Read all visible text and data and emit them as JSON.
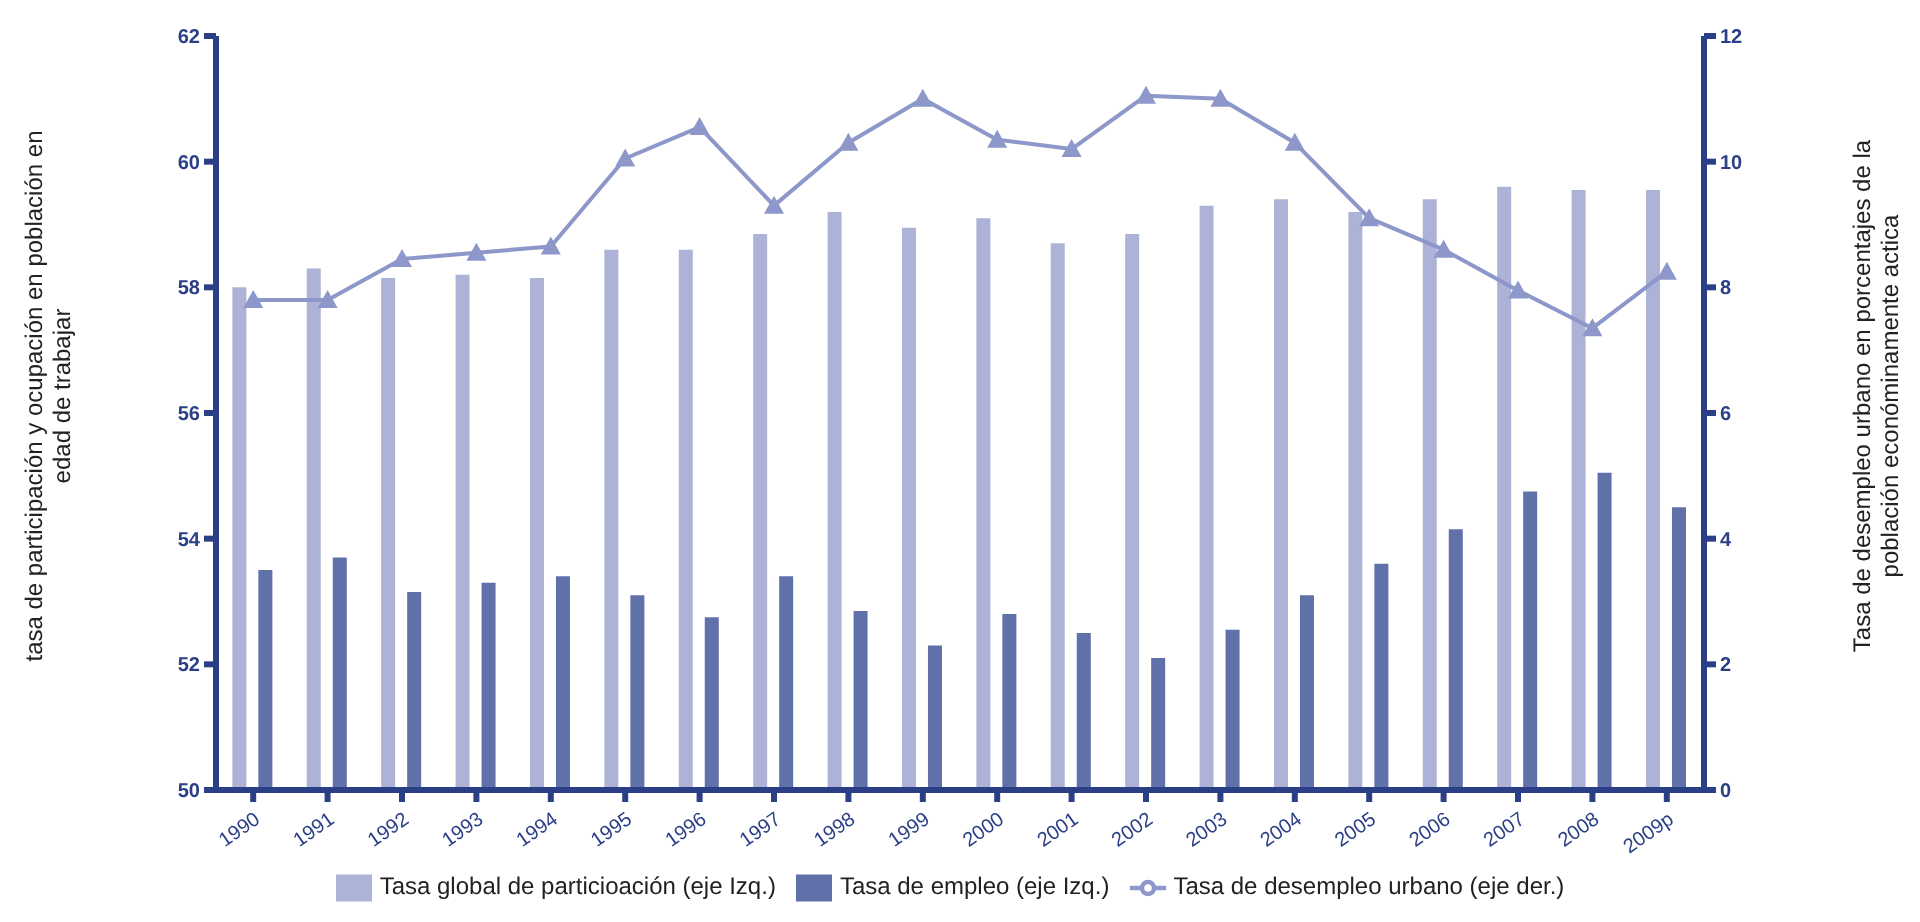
{
  "chart_data": {
    "type": "bar",
    "categories": [
      "1990",
      "1991",
      "1992",
      "1993",
      "1994",
      "1995",
      "1996",
      "1997",
      "1998",
      "1999",
      "2000",
      "2001",
      "2002",
      "2003",
      "2004",
      "2005",
      "2006",
      "2007",
      "2008",
      "2009p"
    ],
    "ylabel": "tasa de participación y ocupación en población en edad de trabajar",
    "y2label": "Tasa de desempleo urbano en porcentajes de la población económinamente actica",
    "ylim": [
      50,
      62
    ],
    "yticks": [
      50,
      52,
      54,
      56,
      58,
      60,
      62
    ],
    "y2lim": [
      0,
      12
    ],
    "y2ticks": [
      0,
      2,
      4,
      6,
      8,
      10,
      12
    ],
    "grid": false,
    "legend": "bottom",
    "series": [
      {
        "name": "Tasa global de particioación (eje Izq.)",
        "color": "#adb3d6",
        "values": [
          58.0,
          58.3,
          58.15,
          58.2,
          58.15,
          58.6,
          58.6,
          58.85,
          59.2,
          58.95,
          59.1,
          58.7,
          58.85,
          59.3,
          59.4,
          59.2,
          59.4,
          59.6,
          59.55,
          59.55
        ]
      },
      {
        "name": "Tasa de empleo (eje Izq.)",
        "color": "#6070a8",
        "values": [
          53.5,
          53.7,
          53.15,
          53.3,
          53.4,
          53.1,
          52.75,
          53.4,
          52.85,
          52.3,
          52.8,
          52.5,
          52.1,
          52.55,
          53.1,
          53.6,
          54.15,
          54.75,
          55.05,
          54.5
        ]
      },
      {
        "name": "Tasa de desempleo urbano (eje der.)",
        "type": "line",
        "axis": "y2",
        "marker": "triangle",
        "color": "#8d97c9",
        "values": [
          7.8,
          7.8,
          8.45,
          8.55,
          8.65,
          10.05,
          10.55,
          9.3,
          10.3,
          11.0,
          10.35,
          10.2,
          11.05,
          11.0,
          10.3,
          9.1,
          8.6,
          7.95,
          7.35,
          8.25
        ]
      }
    ]
  }
}
